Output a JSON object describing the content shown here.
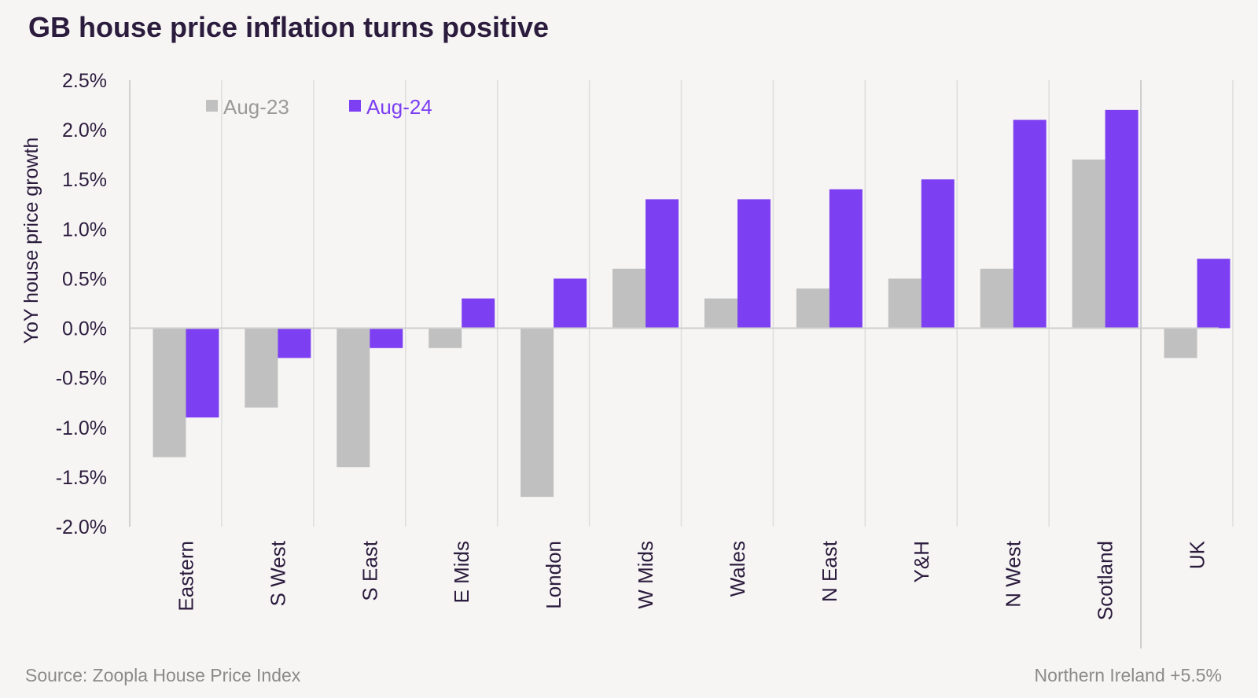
{
  "title": "GB house price inflation turns positive",
  "source": "Source: Zoopla House Price Index",
  "note": "Northern Ireland +5.5%",
  "colors": {
    "aug23": "#c0c0c0",
    "aug24": "#7c3ff2",
    "text": "#2b1b3d",
    "grid": "#dddddd"
  },
  "chart_data": {
    "type": "bar",
    "title": "GB house price inflation turns positive",
    "ylabel": "YoY house price growth",
    "xlabel": "",
    "ylim": [
      -2.0,
      2.5
    ],
    "yticks": [
      2.5,
      2.0,
      1.5,
      1.0,
      0.5,
      0.0,
      -0.5,
      -1.0,
      -1.5,
      -2.0
    ],
    "ytick_labels": [
      "2.5%",
      "2.0%",
      "1.5%",
      "1.0%",
      "0.5%",
      "0.0%",
      "-0.5%",
      "-1.0%",
      "-1.5%",
      "-2.0%"
    ],
    "categories": [
      "Eastern",
      "S West",
      "S East",
      "E Mids",
      "London",
      "W Mids",
      "Wales",
      "N East",
      "Y&H",
      "N West",
      "Scotland",
      "UK"
    ],
    "series": [
      {
        "name": "Aug-23",
        "color": "#c0c0c0",
        "values": [
          -1.3,
          -0.8,
          -1.4,
          -0.2,
          -1.7,
          0.6,
          0.3,
          0.4,
          0.5,
          0.6,
          1.7,
          -0.3
        ]
      },
      {
        "name": "Aug-24",
        "color": "#7c3ff2",
        "values": [
          -0.9,
          -0.3,
          -0.2,
          0.3,
          0.5,
          1.3,
          1.3,
          1.4,
          1.5,
          2.1,
          2.2,
          0.7
        ]
      }
    ],
    "legend": "top-left",
    "grid": "vertical category separators"
  }
}
